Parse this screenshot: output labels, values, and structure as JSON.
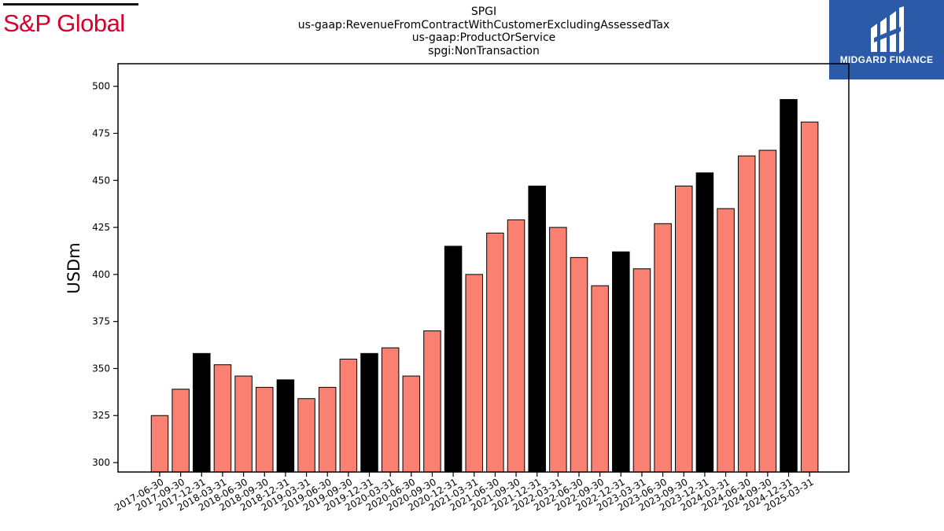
{
  "brand": {
    "left_name": "S&P Global",
    "left_color": "#d6002a",
    "right_name": "MIDGARD FINANCE",
    "right_bg": "#2b5aa8",
    "right_icon": "midgard-logo-icon"
  },
  "titles": [
    "SPGI",
    "us-gaap:RevenueFromContractWithCustomerExcludingAssessedTax",
    "us-gaap:ProductOrService",
    "spgi:NonTransaction"
  ],
  "chart_data": {
    "type": "bar",
    "title": "SPGI",
    "ylabel": "USDm",
    "xlabel": "",
    "ylim": [
      295,
      512
    ],
    "yticks": [
      300,
      325,
      350,
      375,
      400,
      425,
      450,
      475,
      500
    ],
    "grid": false,
    "colors": {
      "regular": "#fa8072",
      "year_end": "#000000"
    },
    "categories": [
      "2017-06-30",
      "2017-09-30",
      "2017-12-31",
      "2018-03-31",
      "2018-06-30",
      "2018-09-30",
      "2018-12-31",
      "2019-03-31",
      "2019-06-30",
      "2019-09-30",
      "2019-12-31",
      "2020-03-31",
      "2020-06-30",
      "2020-09-30",
      "2020-12-31",
      "2021-03-31",
      "2021-06-30",
      "2021-09-30",
      "2021-12-31",
      "2022-03-31",
      "2022-06-30",
      "2022-09-30",
      "2022-12-31",
      "2023-03-31",
      "2023-06-30",
      "2023-09-30",
      "2023-12-31",
      "2024-03-31",
      "2024-06-30",
      "2024-09-30",
      "2024-12-31",
      "2025-03-31"
    ],
    "values": [
      325,
      339,
      358,
      352,
      346,
      340,
      344,
      334,
      340,
      355,
      358,
      361,
      346,
      370,
      415,
      400,
      422,
      429,
      447,
      425,
      409,
      394,
      412,
      403,
      427,
      447,
      454,
      435,
      463,
      466,
      493,
      481
    ]
  }
}
